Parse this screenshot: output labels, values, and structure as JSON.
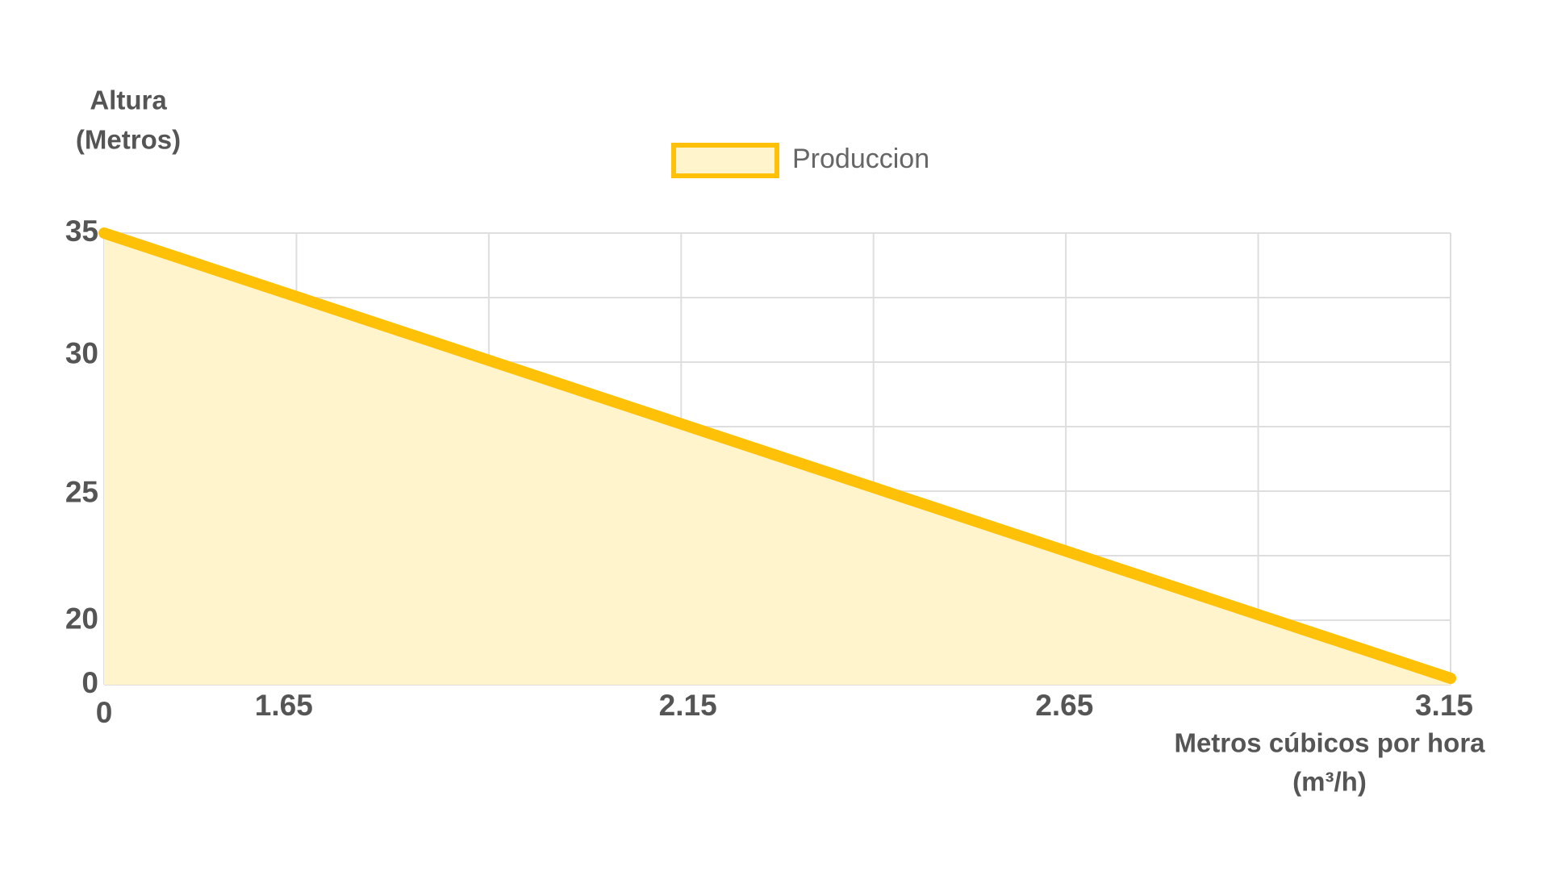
{
  "chart_data": {
    "type": "line",
    "legend": "top",
    "y_label": [
      "Altura",
      "(Metros)"
    ],
    "x_label": [
      "Metros cúbicos por hora",
      "(m³/h)"
    ],
    "x": [
      0,
      3.15
    ],
    "series": [
      {
        "name": "Produccion",
        "color": "#ffc107",
        "fill": "#fff4cc",
        "values": [
          35,
          2
        ]
      }
    ],
    "xlim": [
      0,
      3.15
    ],
    "xticks": [
      0,
      1.65,
      2.15,
      2.65,
      3.15
    ],
    "ylim": [
      0,
      35
    ],
    "yticks": [
      0,
      20,
      25,
      30,
      35
    ],
    "grid": true
  }
}
